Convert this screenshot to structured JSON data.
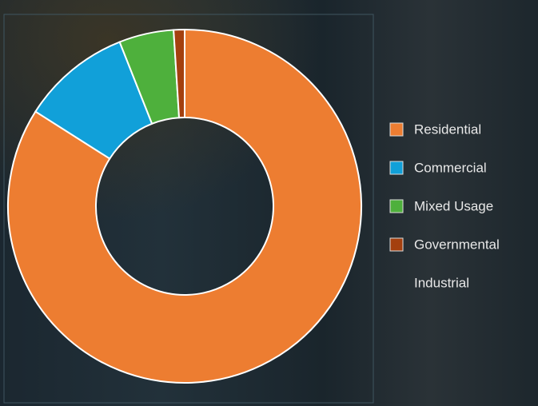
{
  "chart_data": {
    "type": "donut",
    "categories": [
      "Residential",
      "Commercial",
      "Mixed Usage",
      "Governmental",
      "Industrial"
    ],
    "values": [
      84,
      10,
      5,
      1,
      0
    ],
    "colors": [
      "#ed7d31",
      "#11a0d9",
      "#4eb03c",
      "#a4400f",
      "transparent"
    ]
  }
}
